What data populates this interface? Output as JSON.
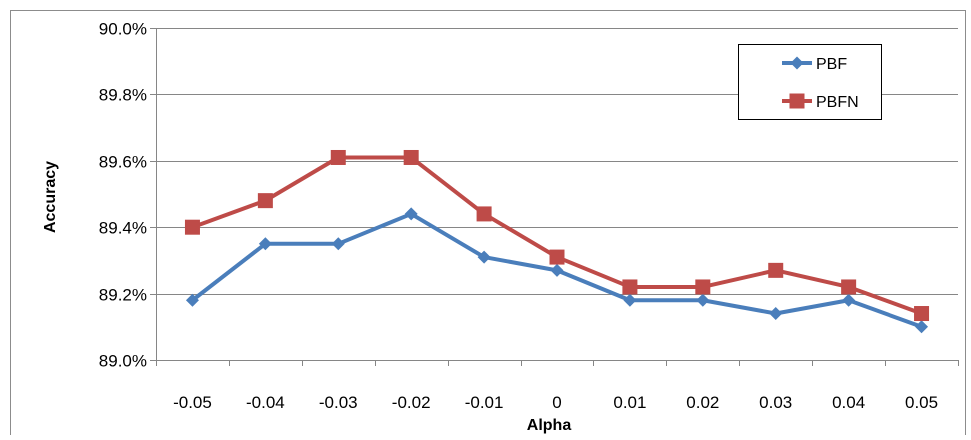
{
  "chart_data": {
    "type": "line",
    "title": "",
    "xlabel": "Alpha",
    "ylabel": "Accuracy",
    "categories": [
      "-0.05",
      "-0.04",
      "-0.03",
      "-0.02",
      "-0.01",
      "0",
      "0.01",
      "0.02",
      "0.03",
      "0.04",
      "0.05"
    ],
    "y_ticks": [
      "89.0%",
      "89.2%",
      "89.4%",
      "89.6%",
      "89.8%",
      "90.0%"
    ],
    "ylim": [
      89.0,
      90.0
    ],
    "grid": true,
    "legend_position": "top-right",
    "series": [
      {
        "name": "PBF",
        "color": "#4A7EBB",
        "marker": "diamond",
        "values": [
          89.18,
          89.35,
          89.35,
          89.44,
          89.31,
          89.27,
          89.18,
          89.18,
          89.14,
          89.18,
          89.1
        ]
      },
      {
        "name": "PBFN",
        "color": "#BE4B48",
        "marker": "square",
        "values": [
          89.4,
          89.48,
          89.61,
          89.61,
          89.44,
          89.31,
          89.22,
          89.22,
          89.27,
          89.22,
          89.14
        ]
      }
    ]
  }
}
